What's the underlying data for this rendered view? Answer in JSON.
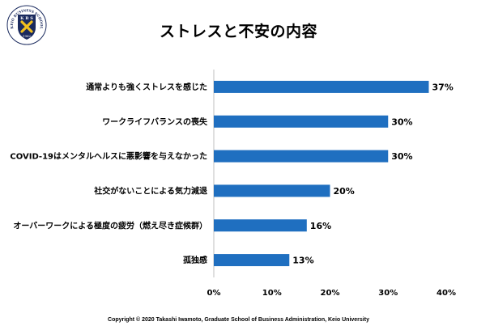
{
  "page": {
    "title": "ストレスと不安の内容",
    "copyright": "Copyright © 2020 Takashi Iwamoto, Graduate School of Business Administration, Keio University"
  },
  "logo": {
    "top_text": "K B S",
    "year": "1962",
    "ring_text": "KEIO BUSINESS SCHOOL",
    "navy": "#1a2a5e",
    "gold": "#f2c01e"
  },
  "chart_data": {
    "type": "bar",
    "orientation": "horizontal",
    "categories": [
      "通常よりも強くストレスを感じた",
      "ワークライフバランスの喪失",
      "COVID-19はメンタルヘルスに悪影響を与えなかった",
      "社交がないことによる気力減退",
      "オーバーワークによる極度の疲労（燃え尽き症候群）",
      "孤独感"
    ],
    "values": [
      37,
      30,
      30,
      20,
      16,
      13
    ],
    "value_labels": [
      "37%",
      "30%",
      "30%",
      "20%",
      "16%",
      "13%"
    ],
    "xlim": [
      0,
      40
    ],
    "x_ticks": [
      0,
      10,
      20,
      30,
      40
    ],
    "x_tick_labels": [
      "0%",
      "10%",
      "20%",
      "30%",
      "40%"
    ],
    "bar_color": "#1f6fc0",
    "grid": false,
    "legend": "none"
  }
}
